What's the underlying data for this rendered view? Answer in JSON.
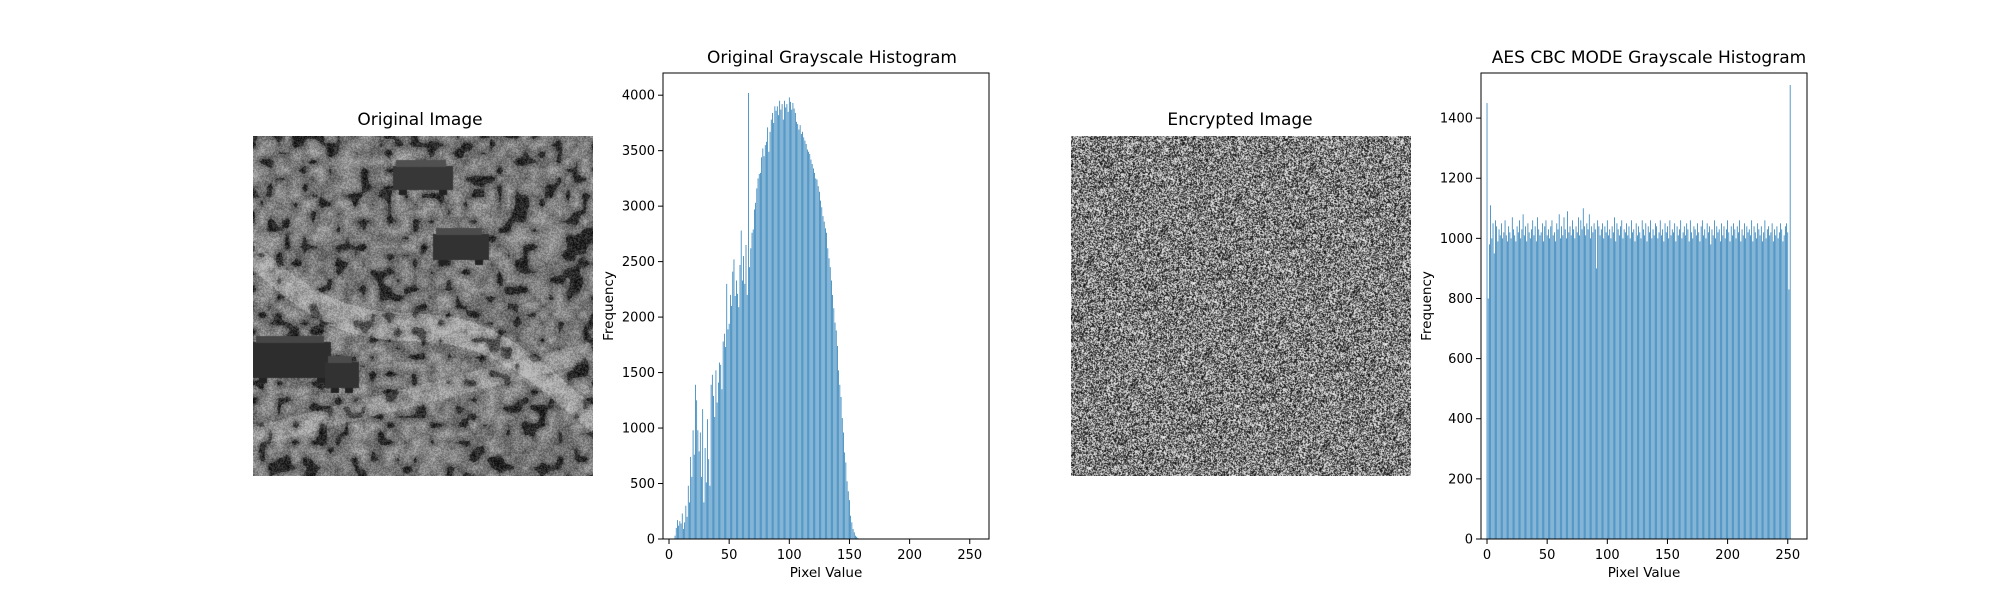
{
  "figure": {
    "panels": [
      {
        "title": "Original Image"
      },
      {
        "title": "Original Grayscale Histogram"
      },
      {
        "title": "Encrypted Image"
      },
      {
        "title": "AES CBC MODE Grayscale Histogram"
      }
    ]
  },
  "chart_data": [
    {
      "type": "image",
      "title": "Original Image",
      "description_of_content": "grayscale photo, desert scrubland with three vehicles"
    },
    {
      "type": "bar",
      "title": "Original Grayscale Histogram",
      "xlabel": "Pixel Value",
      "ylabel": "Frequency",
      "xlim": [
        -5,
        266
      ],
      "ylim": [
        0,
        4200
      ],
      "xticks": [
        0,
        50,
        100,
        150,
        200,
        250
      ],
      "yticks": [
        0,
        500,
        1000,
        1500,
        2000,
        2500,
        3000,
        3500,
        4000
      ],
      "color": "#1f77b4",
      "notable_bins": [
        {
          "x": 22,
          "y": 1450
        },
        {
          "x": 36,
          "y": 1290
        },
        {
          "x": 48,
          "y": 2300
        },
        {
          "x": 54,
          "y": 2520
        },
        {
          "x": 60,
          "y": 2780
        },
        {
          "x": 66,
          "y": 4020
        },
        {
          "x": 83,
          "y": 3490
        },
        {
          "x": 100,
          "y": 3980
        },
        {
          "x": 104,
          "y": 3930
        }
      ],
      "series": [
        {
          "values": [
            0,
            0,
            0,
            0,
            0,
            30,
            100,
            170,
            120,
            160,
            140,
            230,
            90,
            150,
            300,
            200,
            480,
            330,
            740,
            560,
            980,
            760,
            1390,
            1250,
            980,
            790,
            960,
            560,
            1170,
            330,
            820,
            510,
            1080,
            720,
            480,
            1390,
            1480,
            1290,
            1100,
            1520,
            1230,
            1410,
            1590,
            1570,
            1350,
            1780,
            1850,
            1730,
            2300,
            1890,
            1940,
            2200,
            2100,
            2410,
            2520,
            2190,
            2330,
            2210,
            2090,
            2470,
            2780,
            2330,
            2550,
            2300,
            2650,
            2200,
            4020,
            2450,
            2620,
            2760,
            2790,
            2970,
            3030,
            3160,
            3250,
            3290,
            3300,
            3440,
            3520,
            3450,
            3550,
            3580,
            3710,
            3490,
            3670,
            3780,
            3840,
            3750,
            3900,
            3860,
            3900,
            3820,
            3950,
            3870,
            3920,
            3780,
            3950,
            3890,
            3920,
            3850,
            3980,
            3940,
            3870,
            3930,
            3880,
            3840,
            3760,
            3740,
            3690,
            3730,
            3650,
            3670,
            3620,
            3590,
            3560,
            3510,
            3490,
            3470,
            3420,
            3380,
            3340,
            3300,
            3250,
            3240,
            3180,
            3130,
            3050,
            2990,
            2910,
            2860,
            2800,
            2760,
            2620,
            2530,
            2450,
            2330,
            2200,
            2080,
            1950,
            1880,
            1740,
            1520,
            1390,
            1280,
            1090,
            960,
            780,
            690,
            520,
            430,
            350,
            210,
            150,
            90,
            60,
            30,
            20,
            10,
            0,
            0,
            0,
            0,
            0,
            0,
            0,
            0,
            0,
            0,
            0,
            0,
            0,
            0,
            0,
            0,
            0,
            0,
            0,
            0,
            0,
            0,
            0,
            0,
            0,
            0,
            0,
            0,
            0,
            0,
            0,
            0,
            0,
            0,
            0,
            0,
            0,
            0,
            0,
            0,
            0,
            0,
            0,
            0,
            0,
            0,
            0,
            0,
            0,
            0,
            0,
            0,
            0,
            0,
            0,
            0,
            0,
            0,
            0,
            0,
            0,
            0,
            0,
            0,
            0,
            0,
            0,
            0,
            0,
            0,
            0,
            0,
            0,
            0,
            0,
            0,
            0,
            0,
            0,
            0,
            0,
            0,
            0,
            0,
            0,
            0,
            0,
            0,
            0,
            0,
            0,
            0,
            0,
            0,
            0,
            0
          ]
        }
      ]
    },
    {
      "type": "image",
      "title": "Encrypted Image",
      "description_of_content": "uniform random grayscale noise"
    },
    {
      "type": "bar",
      "title": "AES CBC MODE Grayscale Histogram",
      "xlabel": "Pixel Value",
      "ylabel": "Frequency",
      "xlim": [
        -5,
        266
      ],
      "ylim": [
        0,
        1550
      ],
      "xticks": [
        0,
        50,
        100,
        150,
        200,
        250
      ],
      "yticks": [
        0,
        200,
        400,
        600,
        800,
        1000,
        1200,
        1400
      ],
      "color": "#1f77b4",
      "notable_bins": [
        {
          "x": 0,
          "y": 1450
        },
        {
          "x": 1,
          "y": 800
        },
        {
          "x": 3,
          "y": 1110
        },
        {
          "x": 91,
          "y": 900
        },
        {
          "x": 254,
          "y": 830
        },
        {
          "x": 255,
          "y": 1510
        }
      ],
      "series": [
        {
          "values": [
            1450,
            800,
            980,
            1110,
            1000,
            1050,
            950,
            1060,
            1040,
            990,
            1030,
            1010,
            1050,
            1000,
            1020,
            1060,
            1010,
            990,
            1040,
            1020,
            1000,
            1070,
            1030,
            1010,
            990,
            1040,
            1020,
            1060,
            1000,
            1030,
            1080,
            1010,
            1040,
            990,
            1050,
            1020,
            1000,
            1030,
            1060,
            1010,
            1040,
            990,
            1070,
            1030,
            1010,
            1020,
            1050,
            990,
            1040,
            1060,
            1010,
            1030,
            1000,
            1040,
            1060,
            1010,
            1020,
            990,
            1050,
            1030,
            1080,
            1000,
            1040,
            1010,
            1070,
            1030,
            1000,
            1090,
            1020,
            1040,
            1010,
            1060,
            1030,
            1000,
            1040,
            1020,
            1070,
            1010,
            1060,
            1030,
            1100,
            1040,
            1010,
            1050,
            1030,
            1080,
            1000,
            1040,
            1020,
            1050,
            1030,
            900,
            1060,
            1040,
            1010,
            1030,
            1050,
            1000,
            1040,
            1020,
            1060,
            1010,
            1030,
            1000,
            1040,
            1020,
            1070,
            990,
            1050,
            1030,
            1010,
            1040,
            1060,
            1000,
            1030,
            1020,
            1050,
            1010,
            1040,
            1000,
            1060,
            1020,
            1030,
            990,
            1050,
            1010,
            1040,
            1020,
            1000,
            1060,
            1030,
            1010,
            1050,
            990,
            1040,
            1020,
            1060,
            1000,
            1030,
            1010,
            1050,
            1040,
            1000,
            1020,
            1060,
            1010,
            1030,
            990,
            1050,
            1020,
            1040,
            1000,
            1060,
            1010,
            1030,
            1020,
            1050,
            990,
            1040,
            1010,
            1030,
            1060,
            1000,
            1020,
            1040,
            1010,
            1050,
            1030,
            990,
            1060,
            1020,
            1000,
            1040,
            1030,
            1010,
            1050,
            1020,
            990,
            1040,
            1060,
            1010,
            1030,
            1000,
            1050,
            1020,
            1040,
            980,
            1030,
            1010,
            1060,
            1000,
            1040,
            1020,
            1030,
            990,
            1050,
            1010,
            1040,
            1000,
            1030,
            1060,
            1020,
            990,
            1040,
            1010,
            1050,
            1030,
            1000,
            1040,
            1020,
            1060,
            990,
            1030,
            1010,
            1050,
            1000,
            1040,
            1020,
            1030,
            1010,
            1060,
            990,
            1040,
            1020,
            1000,
            1050,
            1030,
            1010,
            1040,
            990,
            1020,
            1060,
            1000,
            1030,
            1040,
            1010,
            1020,
            1050,
            990,
            1030,
            1010,
            1040,
            1000,
            1020,
            1050,
            1030,
            990,
            1010,
            1040,
            1050,
            1020,
            830,
            1510
          ]
        }
      ]
    }
  ]
}
